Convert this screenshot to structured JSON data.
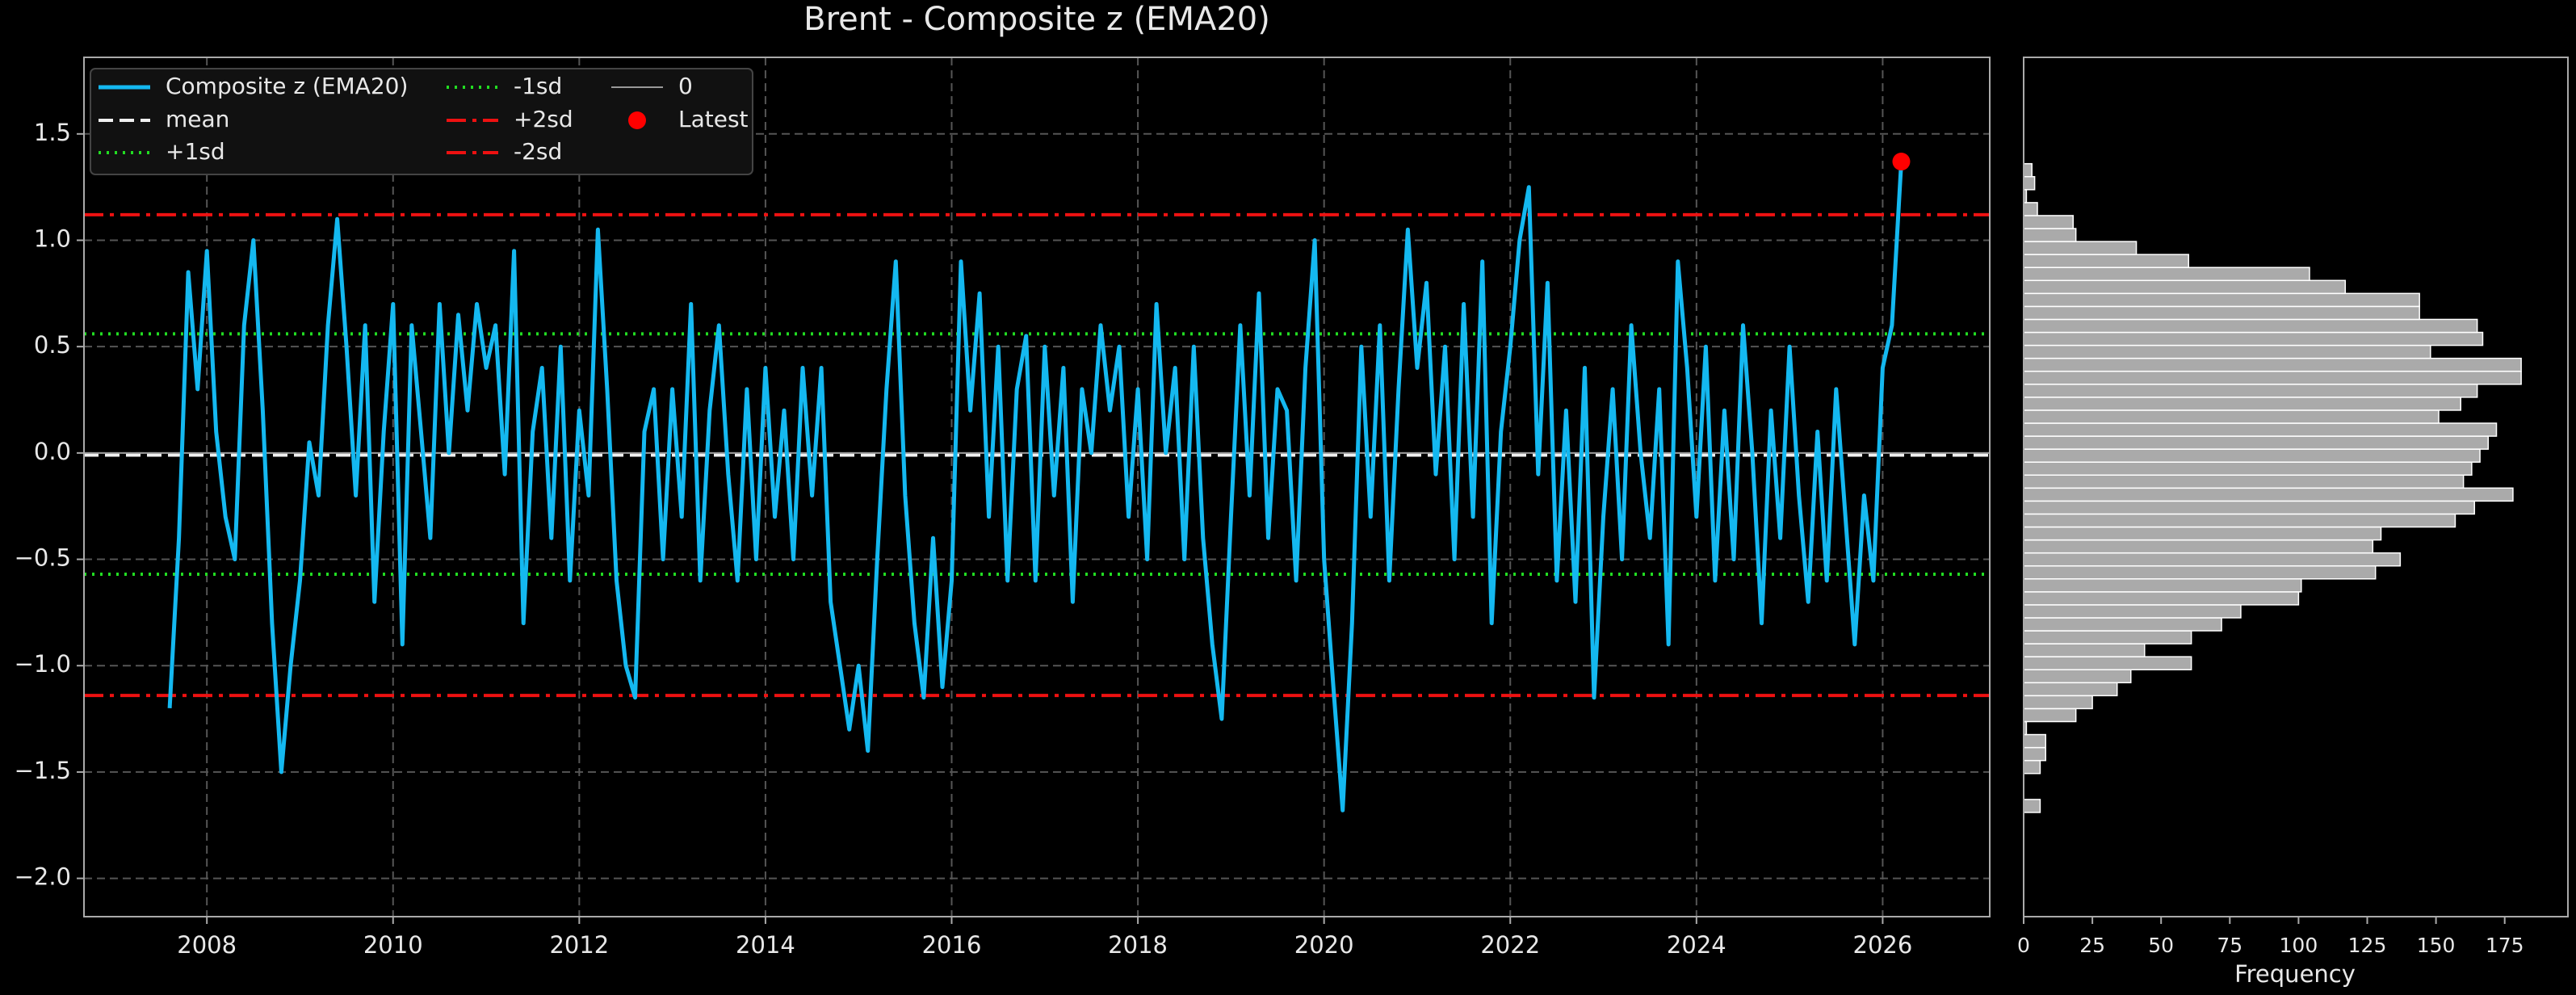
{
  "chart_data": [
    {
      "type": "line",
      "title": "Brent - Composite z (EMA20)",
      "x": [
        2007.6,
        2007.7,
        2007.8,
        2007.9,
        2008.0,
        2008.1,
        2008.2,
        2008.3,
        2008.4,
        2008.5,
        2008.6,
        2008.7,
        2008.8,
        2008.9,
        2009.0,
        2009.1,
        2009.2,
        2009.3,
        2009.4,
        2009.5,
        2009.6,
        2009.7,
        2009.8,
        2009.9,
        2010.0,
        2010.1,
        2010.2,
        2010.3,
        2010.4,
        2010.5,
        2010.6,
        2010.7,
        2010.8,
        2010.9,
        2011.0,
        2011.1,
        2011.2,
        2011.3,
        2011.4,
        2011.5,
        2011.6,
        2011.7,
        2011.8,
        2011.9,
        2012.0,
        2012.1,
        2012.2,
        2012.3,
        2012.4,
        2012.5,
        2012.6,
        2012.7,
        2012.8,
        2012.9,
        2013.0,
        2013.1,
        2013.2,
        2013.3,
        2013.4,
        2013.5,
        2013.6,
        2013.7,
        2013.8,
        2013.9,
        2014.0,
        2014.1,
        2014.2,
        2014.3,
        2014.4,
        2014.5,
        2014.6,
        2014.7,
        2014.8,
        2014.9,
        2015.0,
        2015.1,
        2015.2,
        2015.3,
        2015.4,
        2015.5,
        2015.6,
        2015.7,
        2015.8,
        2015.9,
        2016.0,
        2016.1,
        2016.2,
        2016.3,
        2016.4,
        2016.5,
        2016.6,
        2016.7,
        2016.8,
        2016.9,
        2017.0,
        2017.1,
        2017.2,
        2017.3,
        2017.4,
        2017.5,
        2017.6,
        2017.7,
        2017.8,
        2017.9,
        2018.0,
        2018.1,
        2018.2,
        2018.3,
        2018.4,
        2018.5,
        2018.6,
        2018.7,
        2018.8,
        2018.9,
        2019.0,
        2019.1,
        2019.2,
        2019.3,
        2019.4,
        2019.5,
        2019.6,
        2019.7,
        2019.8,
        2019.9,
        2020.0,
        2020.1,
        2020.2,
        2020.3,
        2020.4,
        2020.5,
        2020.6,
        2020.7,
        2020.8,
        2020.9,
        2021.0,
        2021.1,
        2021.2,
        2021.3,
        2021.4,
        2021.5,
        2021.6,
        2021.7,
        2021.8,
        2021.9,
        2022.0,
        2022.1,
        2022.2,
        2022.3,
        2022.4,
        2022.5,
        2022.6,
        2022.7,
        2022.8,
        2022.9,
        2023.0,
        2023.1,
        2023.2,
        2023.3,
        2023.4,
        2023.5,
        2023.6,
        2023.7,
        2023.8,
        2023.9,
        2024.0,
        2024.1,
        2024.2,
        2024.3,
        2024.4,
        2024.5,
        2024.6,
        2024.7,
        2024.8,
        2024.9,
        2025.0,
        2025.1,
        2025.2,
        2025.3,
        2025.4,
        2025.5,
        2025.6,
        2025.7,
        2025.8,
        2025.9,
        2026.0,
        2026.1,
        2026.2
      ],
      "series": [
        {
          "name": "Composite z (EMA20)",
          "color": "#14b8f0",
          "values": [
            -1.2,
            -0.4,
            0.85,
            0.3,
            0.95,
            0.1,
            -0.3,
            -0.5,
            0.6,
            1.0,
            0.2,
            -0.8,
            -1.5,
            -1.0,
            -0.6,
            0.05,
            -0.2,
            0.6,
            1.1,
            0.5,
            -0.2,
            0.6,
            -0.7,
            0.1,
            0.7,
            -0.9,
            0.6,
            0.1,
            -0.4,
            0.7,
            0.0,
            0.65,
            0.2,
            0.7,
            0.4,
            0.6,
            -0.1,
            0.95,
            -0.8,
            0.1,
            0.4,
            -0.4,
            0.5,
            -0.6,
            0.2,
            -0.2,
            1.05,
            0.3,
            -0.6,
            -1.0,
            -1.15,
            0.1,
            0.3,
            -0.5,
            0.3,
            -0.3,
            0.7,
            -0.6,
            0.2,
            0.6,
            -0.1,
            -0.6,
            0.3,
            -0.5,
            0.4,
            -0.3,
            0.2,
            -0.5,
            0.4,
            -0.2,
            0.4,
            -0.7,
            -1.0,
            -1.3,
            -1.0,
            -1.4,
            -0.5,
            0.3,
            0.9,
            -0.2,
            -0.8,
            -1.15,
            -0.4,
            -1.1,
            -0.6,
            0.9,
            0.2,
            0.75,
            -0.3,
            0.5,
            -0.6,
            0.3,
            0.55,
            -0.6,
            0.5,
            -0.2,
            0.4,
            -0.7,
            0.3,
            0.0,
            0.6,
            0.2,
            0.5,
            -0.3,
            0.3,
            -0.5,
            0.7,
            0.0,
            0.4,
            -0.5,
            0.5,
            -0.4,
            -0.9,
            -1.25,
            -0.3,
            0.6,
            -0.2,
            0.75,
            -0.4,
            0.3,
            0.2,
            -0.6,
            0.4,
            1.0,
            -0.5,
            -1.1,
            -1.68,
            -0.8,
            0.5,
            -0.3,
            0.6,
            -0.6,
            0.3,
            1.05,
            0.4,
            0.8,
            -0.1,
            0.5,
            -0.5,
            0.7,
            -0.3,
            0.9,
            -0.8,
            0.1,
            0.5,
            1.0,
            1.25,
            -0.1,
            0.8,
            -0.6,
            0.2,
            -0.7,
            0.4,
            -1.15,
            -0.3,
            0.3,
            -0.5,
            0.6,
            0.0,
            -0.4,
            0.3,
            -0.9,
            0.9,
            0.4,
            -0.3,
            0.5,
            -0.6,
            0.2,
            -0.5,
            0.6,
            0.0,
            -0.8,
            0.2,
            -0.4,
            0.5,
            -0.2,
            -0.7,
            0.1,
            -0.6,
            0.3,
            -0.3,
            -0.9,
            -0.2,
            -0.6,
            0.4,
            0.6,
            1.37
          ]
        }
      ],
      "reference_lines": [
        {
          "name": "mean",
          "value": -0.01,
          "color": "#f0f0f0",
          "style": "dashed"
        },
        {
          "name": "+1sd",
          "value": 0.56,
          "color": "#22dd22",
          "style": "dotted"
        },
        {
          "name": "-1sd",
          "value": -0.57,
          "color": "#22dd22",
          "style": "dotted"
        },
        {
          "name": "+2sd",
          "value": 1.12,
          "color": "#ee1111",
          "style": "dashdot"
        },
        {
          "name": "-2sd",
          "value": -1.14,
          "color": "#ee1111",
          "style": "dashdot"
        },
        {
          "name": "0",
          "value": 0,
          "color": "#999999",
          "style": "solid"
        }
      ],
      "latest": {
        "name": "Latest",
        "x": 2026.2,
        "y": 1.37,
        "color": "#ff0000"
      },
      "xlim": [
        2006.68,
        2027.15
      ],
      "xticks": [
        2008,
        2010,
        2012,
        2014,
        2016,
        2018,
        2020,
        2022,
        2024,
        2026
      ],
      "ylim": [
        -2.18,
        1.86
      ],
      "yticks": [
        {
          "value": -2,
          "label": "−2.0"
        },
        {
          "value": -1.5,
          "label": "−1.5"
        },
        {
          "value": -1,
          "label": "−1.0"
        },
        {
          "value": -0.5,
          "label": "−0.5"
        },
        {
          "value": 0,
          "label": "0.0"
        },
        {
          "value": 0.5,
          "label": "0.5"
        },
        {
          "value": 1,
          "label": "1.0"
        },
        {
          "value": 1.5,
          "label": "1.5"
        }
      ],
      "grid": true,
      "legend": "upper left"
    },
    {
      "type": "histogram",
      "orientation": "horizontal",
      "xlabel": "Frequency",
      "color": "#aaaaaa",
      "bins": [
        -1.69,
        -1.629,
        -1.568,
        -1.507,
        -1.446,
        -1.385,
        -1.324,
        -1.263,
        -1.202,
        -1.141,
        -1.08,
        -1.019,
        -0.958,
        -0.897,
        -0.836,
        -0.775,
        -0.714,
        -0.653,
        -0.592,
        -0.531,
        -0.47,
        -0.409,
        -0.348,
        -0.287,
        -0.226,
        -0.165,
        -0.104,
        -0.043,
        0.018,
        0.079,
        0.14,
        0.201,
        0.262,
        0.323,
        0.384,
        0.445,
        0.506,
        0.567,
        0.628,
        0.689,
        0.75,
        0.811,
        0.872,
        0.933,
        0.994,
        1.055,
        1.116,
        1.177,
        1.238,
        1.299,
        1.36
      ],
      "values": [
        6,
        0,
        0,
        6,
        8,
        8,
        1,
        19,
        25,
        34,
        39,
        61,
        44,
        61,
        72,
        79,
        100,
        101,
        128,
        137,
        127,
        130,
        157,
        164,
        178,
        160,
        163,
        166,
        169,
        172,
        151,
        159,
        165,
        181,
        181,
        148,
        167,
        165,
        144,
        144,
        117,
        104,
        60,
        41,
        19,
        18,
        5,
        1,
        4,
        3
      ],
      "xlim": [
        0,
        198
      ],
      "xticks": [
        0,
        25,
        50,
        75,
        100,
        125,
        150,
        175
      ],
      "ylim": [
        -2.18,
        1.86
      ]
    }
  ]
}
